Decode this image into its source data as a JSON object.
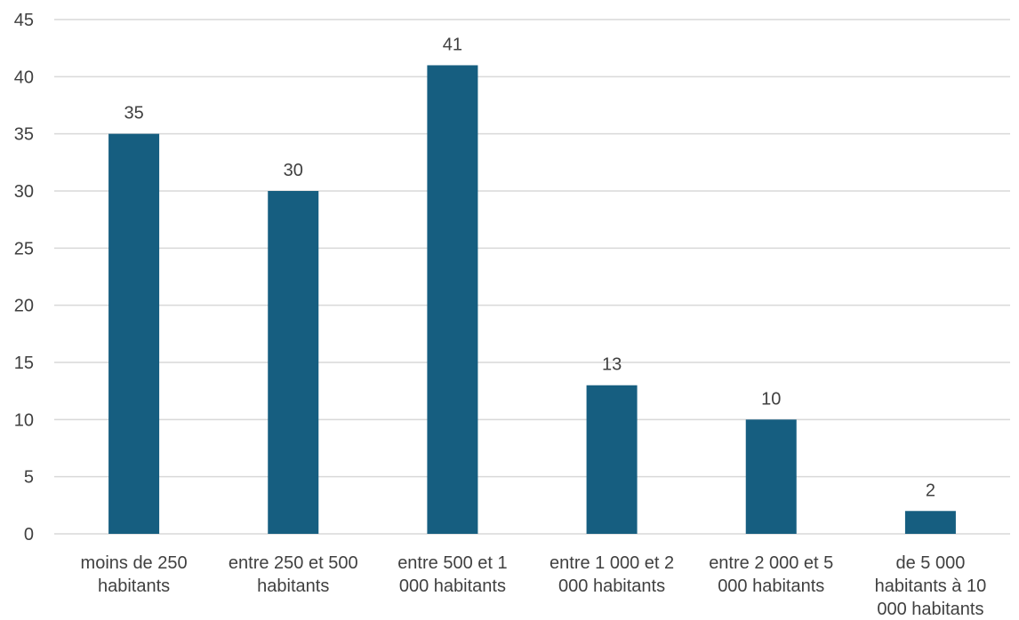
{
  "chart_data": {
    "type": "bar",
    "categories": [
      [
        "moins de 250",
        "habitants"
      ],
      [
        "entre 250 et 500",
        "habitants"
      ],
      [
        "entre 500 et 1",
        "000 habitants"
      ],
      [
        "entre 1 000 et 2",
        "000 habitants"
      ],
      [
        "entre 2 000 et 5",
        "000 habitants"
      ],
      [
        "de 5 000",
        "habitants à 10",
        "000 habitants"
      ]
    ],
    "values": [
      35,
      30,
      41,
      13,
      10,
      2
    ],
    "data_labels": [
      "35",
      "30",
      "41",
      "13",
      "10",
      "2"
    ],
    "y_ticks": [
      "0",
      "5",
      "10",
      "15",
      "20",
      "25",
      "30",
      "35",
      "40",
      "45"
    ],
    "ylim": [
      0,
      45
    ],
    "grid": true,
    "bar_color": "#165e80",
    "grid_color": "#d9d9d9",
    "text_color": "#404040"
  }
}
